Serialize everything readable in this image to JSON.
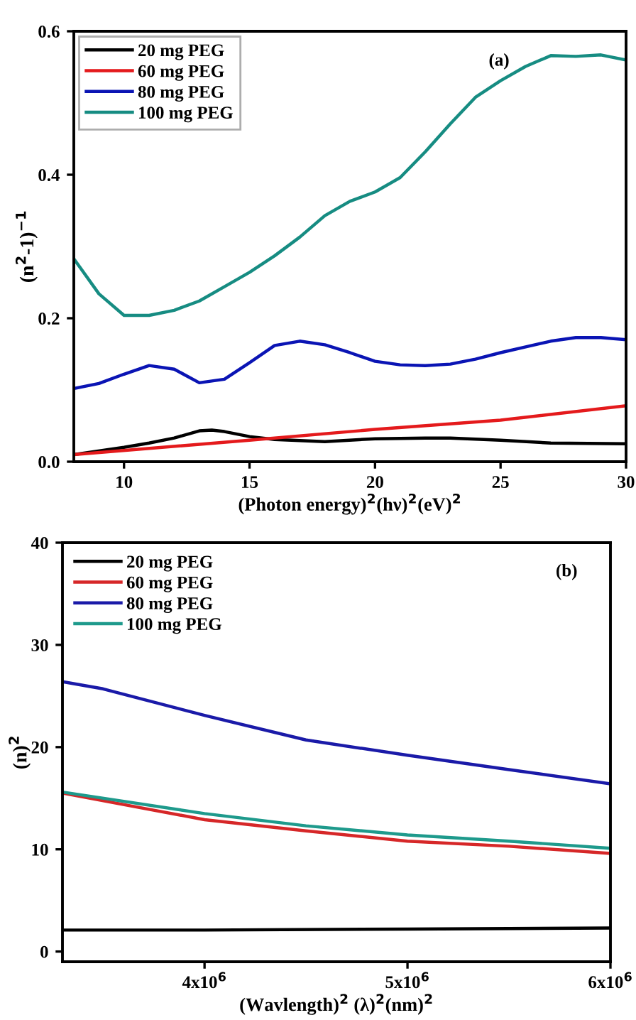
{
  "chart_data": [
    {
      "type": "line",
      "xlabel": "(Photon energy)$^{2}$(hν)$^{2}$(eV)$^{2}$",
      "ylabel": "(n$^{2}$-1)$^{−1}$",
      "annotations": [
        "(a)"
      ],
      "legend": "top left",
      "grid": false,
      "xlim": [
        8,
        30
      ],
      "xticks": [
        10,
        15,
        20,
        25,
        30
      ],
      "ylim": [
        0,
        0.6
      ],
      "yticks": [
        {
          "value": 0,
          "label": "0.0"
        },
        0.2,
        0.4,
        0.6
      ],
      "series": [
        {
          "name": "20 mg PEG",
          "color": "#000000",
          "x": [
            8,
            10,
            11,
            12,
            13,
            13.5,
            14,
            15,
            16,
            18,
            20,
            22,
            23,
            25,
            27,
            30
          ],
          "values": [
            0.01,
            0.02,
            0.026,
            0.033,
            0.043,
            0.044,
            0.042,
            0.035,
            0.031,
            0.028,
            0.032,
            0.033,
            0.033,
            0.03,
            0.026,
            0.025
          ]
        },
        {
          "name": "60 mg PEG",
          "color": "#e41a1c",
          "x": [
            8,
            15,
            20,
            25,
            30
          ],
          "values": [
            0.01,
            0.03,
            0.045,
            0.058,
            0.078
          ]
        },
        {
          "name": "80 mg PEG",
          "color": "#0a14b4",
          "x": [
            8,
            9,
            10,
            11,
            12,
            13,
            14,
            15,
            16,
            17,
            18,
            19,
            20,
            21,
            22,
            23,
            24,
            25,
            26,
            27,
            28,
            29,
            30
          ],
          "values": [
            0.102,
            0.109,
            0.122,
            0.134,
            0.129,
            0.11,
            0.115,
            0.138,
            0.162,
            0.168,
            0.163,
            0.152,
            0.14,
            0.135,
            0.134,
            0.136,
            0.143,
            0.152,
            0.16,
            0.168,
            0.173,
            0.173,
            0.17
          ]
        },
        {
          "name": "100 mg PEG",
          "color": "#168c82",
          "x": [
            8,
            9,
            10,
            11,
            12,
            13,
            14,
            15,
            16,
            17,
            18,
            19,
            20,
            21,
            22,
            23,
            24,
            25,
            26,
            27,
            28,
            29,
            30
          ],
          "values": [
            0.283,
            0.234,
            0.204,
            0.204,
            0.211,
            0.224,
            0.244,
            0.264,
            0.287,
            0.313,
            0.343,
            0.363,
            0.376,
            0.396,
            0.432,
            0.471,
            0.508,
            0.531,
            0.551,
            0.566,
            0.565,
            0.567,
            0.56
          ]
        }
      ]
    },
    {
      "type": "line",
      "xlabel": "(Wavlength)$^{2}$ (λ)$^{2}$(nm)$^{2}$",
      "ylabel": "(n)$^{2}$",
      "annotations": [
        "(b)"
      ],
      "legend": "top left",
      "grid": false,
      "xlim": [
        3300000,
        6000000
      ],
      "xticks": [
        {
          "value": 4000000,
          "label": "4x10$^{6}$"
        },
        {
          "value": 5000000,
          "label": "5x10$^{6}$"
        },
        {
          "value": 6000000,
          "label": "6x10$^{6}$"
        }
      ],
      "ylim": [
        -1,
        40
      ],
      "yticks": [
        0,
        10,
        20,
        30,
        40
      ],
      "series": [
        {
          "name": "20 mg PEG",
          "color": "#000000",
          "x": [
            3300000,
            4000000,
            5000000,
            6000000
          ],
          "values": [
            2.1,
            2.1,
            2.2,
            2.3
          ]
        },
        {
          "name": "60 mg PEG",
          "color": "#d62728",
          "x": [
            3300000,
            4000000,
            4500000,
            5000000,
            5500000,
            6000000
          ],
          "values": [
            15.5,
            12.9,
            11.8,
            10.8,
            10.3,
            9.6
          ]
        },
        {
          "name": "80 mg PEG",
          "color": "#1a1aa8",
          "x": [
            3300000,
            3500000,
            4000000,
            4500000,
            5000000,
            5500000,
            6000000
          ],
          "values": [
            26.4,
            25.7,
            23.1,
            20.7,
            19.2,
            17.8,
            16.4
          ]
        },
        {
          "name": "100 mg PEG",
          "color": "#1e9a8c",
          "x": [
            3300000,
            4000000,
            4500000,
            5000000,
            5500000,
            6000000
          ],
          "values": [
            15.6,
            13.5,
            12.3,
            11.4,
            10.8,
            10.1
          ]
        }
      ]
    }
  ]
}
